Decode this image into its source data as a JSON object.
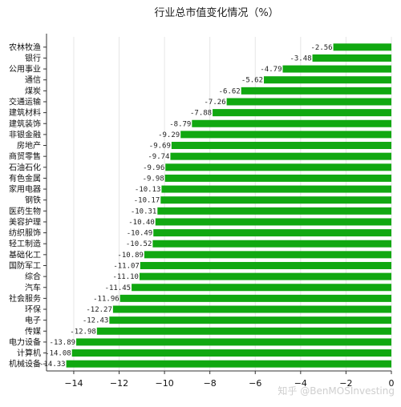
{
  "chart_data": {
    "type": "bar",
    "orientation": "horizontal",
    "title": "行业总市值变化情况（%）",
    "xlabel": "",
    "ylabel": "",
    "xlim": [
      -15.2,
      0
    ],
    "xticks": [
      -14,
      -12,
      -10,
      -8,
      -6,
      -4,
      -2,
      0
    ],
    "grid": true,
    "bar_color": "#11a811",
    "categories": [
      "农林牧渔",
      "银行",
      "公用事业",
      "通信",
      "煤炭",
      "交通运输",
      "建筑材料",
      "建筑装饰",
      "非银金融",
      "房地产",
      "商贸零售",
      "石油石化",
      "有色金属",
      "家用电器",
      "钢铁",
      "医药生物",
      "美容护理",
      "纺织服饰",
      "轻工制造",
      "基础化工",
      "国防军工",
      "综合",
      "汽车",
      "社会服务",
      "环保",
      "电子",
      "传媒",
      "电力设备",
      "计算机",
      "机械设备"
    ],
    "values": [
      -2.56,
      -3.48,
      -4.79,
      -5.62,
      -6.62,
      -7.26,
      -7.88,
      -8.79,
      -9.29,
      -9.69,
      -9.74,
      -9.96,
      -9.98,
      -10.13,
      -10.17,
      -10.31,
      -10.4,
      -10.49,
      -10.52,
      -10.89,
      -11.07,
      -11.1,
      -11.45,
      -11.96,
      -12.27,
      -12.43,
      -12.98,
      -13.89,
      -14.08,
      -14.33
    ],
    "value_labels": [
      "-2.56",
      "-3.48",
      "-4.79",
      "-5.62",
      "-6.62",
      "-7.26",
      "-7.88",
      "-8.79",
      "-9.29",
      "-9.69",
      "-9.74",
      "-9.96",
      "-9.98",
      "-10.13",
      "-10.17",
      "-10.31",
      "-10.40",
      "-10.49",
      "-10.52",
      "-10.89",
      "-11.07",
      "-11.10",
      "-11.45",
      "-11.96",
      "-12.27",
      "-12.43",
      "-12.98",
      "-13.89",
      "-14.08",
      "-14.33"
    ]
  },
  "watermark": "知乎 @BenMOSInvesting"
}
